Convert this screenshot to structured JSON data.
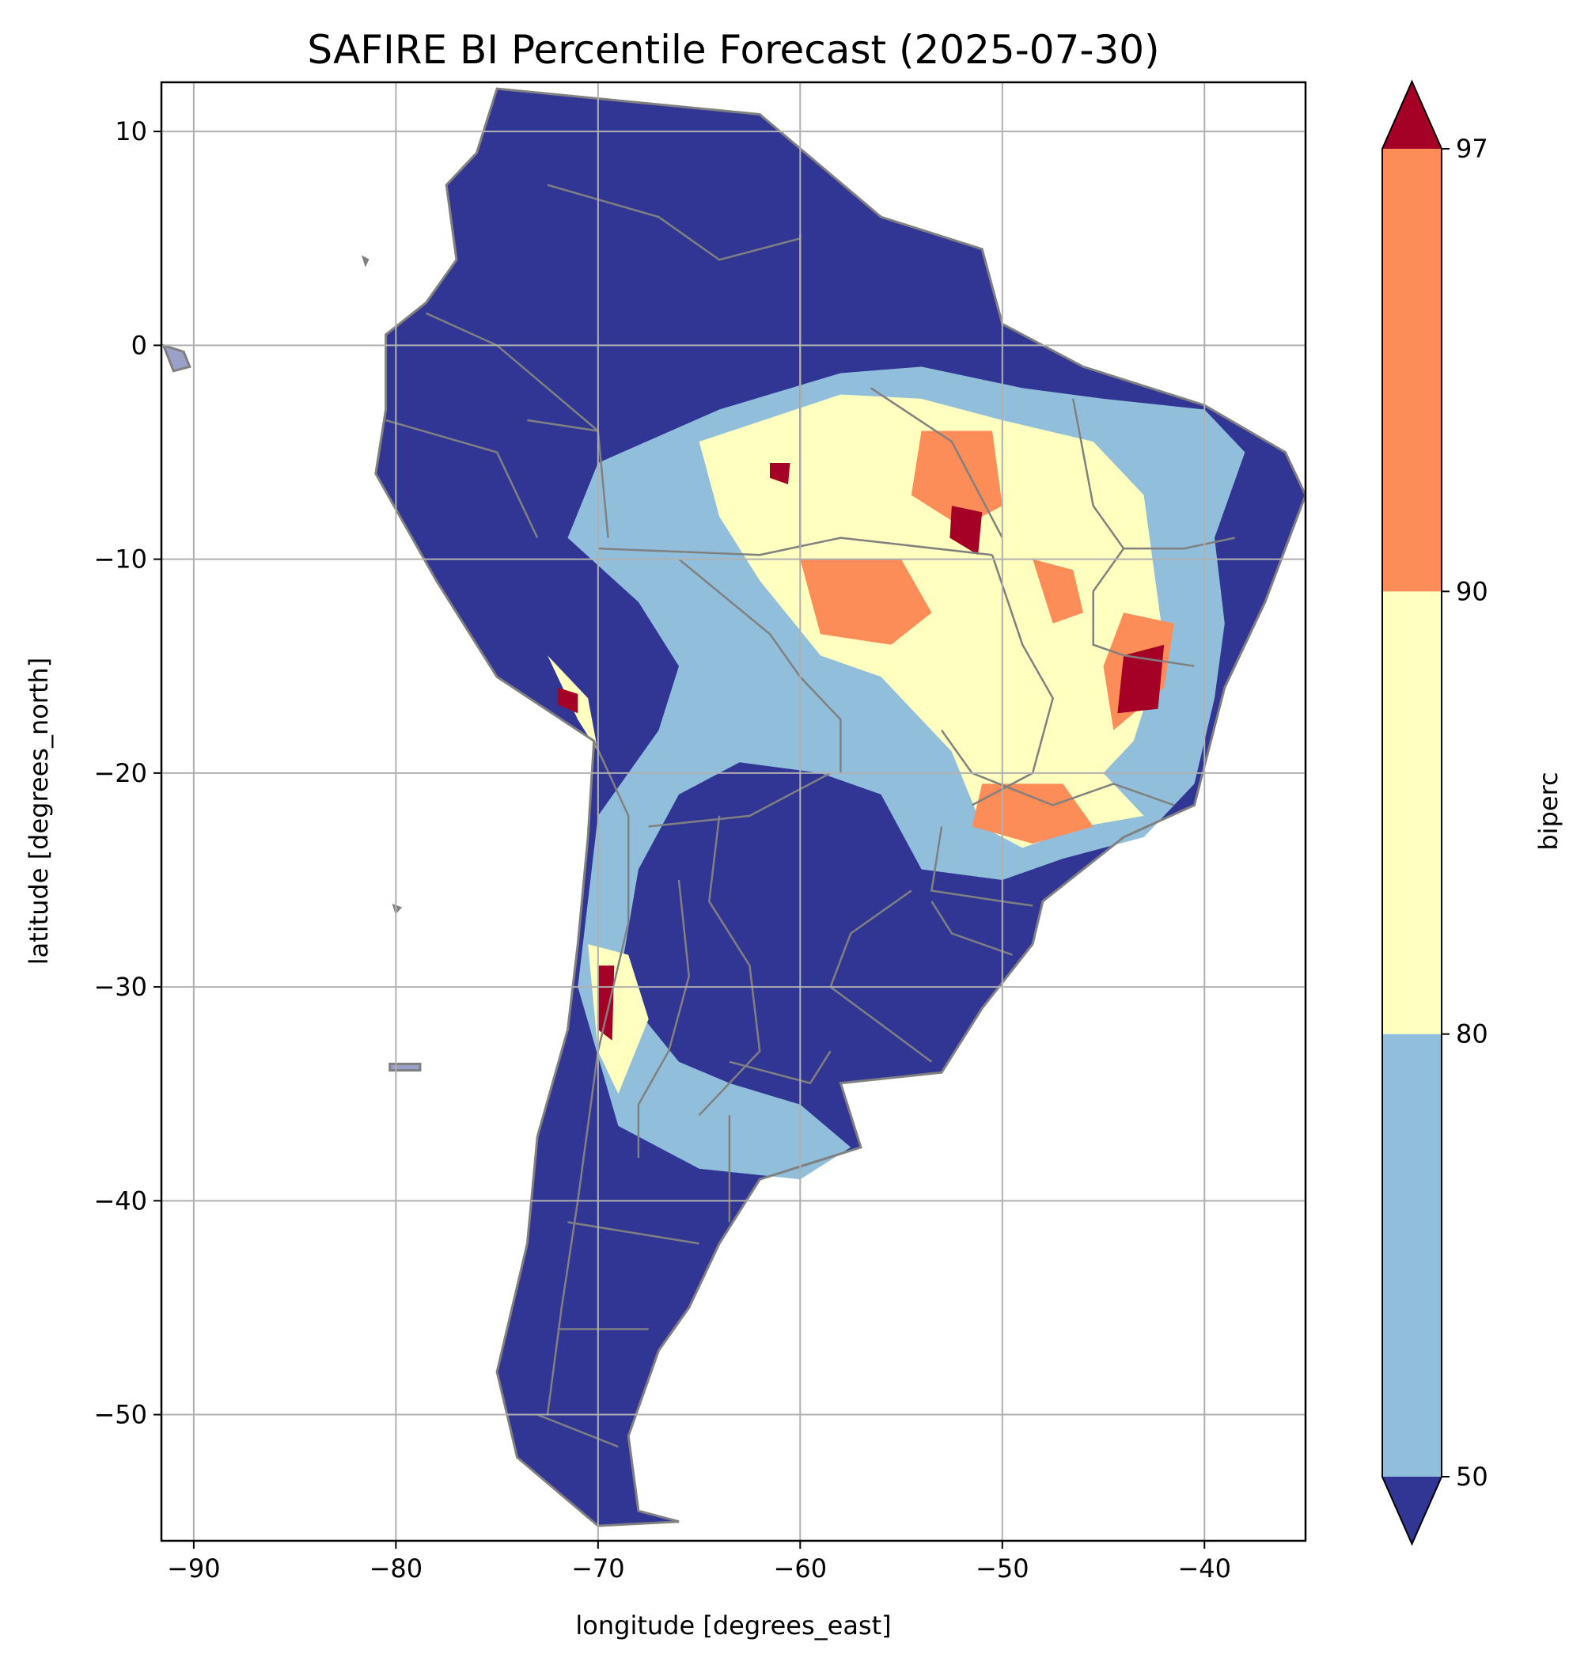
{
  "chart_data": {
    "type": "heatmap",
    "title": "SAFIRE BI Percentile Forecast (2025-07-30)",
    "xlabel": "longitude [degrees_east]",
    "ylabel": "latitude [degrees_north]",
    "xlim": [
      -91.6,
      -35.0
    ],
    "ylim": [
      -55.9,
      12.3
    ],
    "xticks": [
      {
        "value": -90,
        "label": "−90"
      },
      {
        "value": -80,
        "label": "−80"
      },
      {
        "value": -70,
        "label": "−70"
      },
      {
        "value": -60,
        "label": "−60"
      },
      {
        "value": -50,
        "label": "−50"
      },
      {
        "value": -40,
        "label": "−40"
      }
    ],
    "yticks": [
      {
        "value": 10,
        "label": "10"
      },
      {
        "value": 0,
        "label": "0"
      },
      {
        "value": -10,
        "label": "−10"
      },
      {
        "value": -20,
        "label": "−20"
      },
      {
        "value": -30,
        "label": "−30"
      },
      {
        "value": -40,
        "label": "−40"
      },
      {
        "value": -50,
        "label": "−50"
      }
    ],
    "grid": true,
    "colorbar": {
      "label": "biperc",
      "ticks": [
        {
          "value": 50,
          "label": "50"
        },
        {
          "value": 80,
          "label": "80"
        },
        {
          "value": 90,
          "label": "90"
        },
        {
          "value": 97,
          "label": "97"
        }
      ],
      "extend": "both",
      "bins": [
        {
          "range": "<50",
          "color": "#313695"
        },
        {
          "range": "50-80",
          "color": "#91bfdb"
        },
        {
          "range": "80-90",
          "color": "#ffffbf"
        },
        {
          "range": "90-97",
          "color": "#fc8d59"
        },
        {
          "range": ">97",
          "color": "#a50026"
        }
      ]
    },
    "border_color": "#808080",
    "regions": [
      {
        "class": "<50",
        "polygon": [
          [
            -75.0,
            12.0
          ],
          [
            -62.0,
            10.8
          ],
          [
            -56.0,
            6.0
          ],
          [
            -51.0,
            4.5
          ],
          [
            -50.0,
            1.0
          ],
          [
            -46.0,
            -1.0
          ],
          [
            -40.0,
            -2.8
          ],
          [
            -36.0,
            -5.0
          ],
          [
            -35.0,
            -7.0
          ],
          [
            -37.0,
            -12.0
          ],
          [
            -39.0,
            -16.0
          ],
          [
            -40.5,
            -21.5
          ],
          [
            -44.0,
            -23.0
          ],
          [
            -48.0,
            -26.0
          ],
          [
            -48.5,
            -28.0
          ],
          [
            -51.0,
            -31.0
          ],
          [
            -53.0,
            -34.0
          ],
          [
            -58.0,
            -34.5
          ],
          [
            -57.0,
            -37.5
          ],
          [
            -62.0,
            -39.0
          ],
          [
            -64.0,
            -42.0
          ],
          [
            -65.5,
            -45.0
          ],
          [
            -67.0,
            -47.0
          ],
          [
            -68.5,
            -51.0
          ],
          [
            -68.0,
            -54.5
          ],
          [
            -66.0,
            -55.0
          ],
          [
            -70.0,
            -55.2
          ],
          [
            -74.0,
            -52.0
          ],
          [
            -75.0,
            -48.0
          ],
          [
            -73.5,
            -42.0
          ],
          [
            -73.0,
            -37.0
          ],
          [
            -71.5,
            -32.0
          ],
          [
            -71.0,
            -28.0
          ],
          [
            -70.5,
            -23.0
          ],
          [
            -70.2,
            -18.5
          ],
          [
            -75.0,
            -15.5
          ],
          [
            -78.0,
            -11.0
          ],
          [
            -81.0,
            -6.0
          ],
          [
            -80.5,
            -3.0
          ],
          [
            -80.5,
            0.5
          ],
          [
            -78.5,
            2.0
          ],
          [
            -77.0,
            4.0
          ],
          [
            -77.5,
            7.5
          ],
          [
            -76.0,
            9.0
          ],
          [
            -75.0,
            12.0
          ]
        ]
      },
      {
        "class": "50-80",
        "polygon": [
          [
            -71.5,
            -9.0
          ],
          [
            -70.0,
            -5.5
          ],
          [
            -64.0,
            -3.0
          ],
          [
            -58.0,
            -1.3
          ],
          [
            -54.0,
            -1.0
          ],
          [
            -49.0,
            -2.0
          ],
          [
            -45.0,
            -2.5
          ],
          [
            -40.0,
            -3.0
          ],
          [
            -38.0,
            -5.0
          ],
          [
            -39.5,
            -9.0
          ],
          [
            -39.0,
            -13.0
          ],
          [
            -39.5,
            -16.5
          ],
          [
            -40.5,
            -20.5
          ],
          [
            -43.0,
            -23.0
          ],
          [
            -47.0,
            -24.0
          ],
          [
            -50.0,
            -25.0
          ],
          [
            -54.0,
            -24.5
          ],
          [
            -56.0,
            -21.0
          ],
          [
            -59.0,
            -20.0
          ],
          [
            -63.0,
            -19.5
          ],
          [
            -66.0,
            -21.0
          ],
          [
            -68.0,
            -24.5
          ],
          [
            -69.0,
            -30.0
          ],
          [
            -66.0,
            -33.5
          ],
          [
            -63.5,
            -34.5
          ],
          [
            -60.0,
            -35.5
          ],
          [
            -57.5,
            -37.5
          ],
          [
            -60.0,
            -39.0
          ],
          [
            -65.0,
            -38.5
          ],
          [
            -69.0,
            -36.5
          ],
          [
            -71.0,
            -30.0
          ],
          [
            -70.0,
            -22.0
          ],
          [
            -67.0,
            -18.0
          ],
          [
            -66.0,
            -15.0
          ],
          [
            -68.0,
            -12.0
          ],
          [
            -71.5,
            -9.0
          ]
        ]
      },
      {
        "class": "80-90",
        "polygon": [
          [
            -65.0,
            -4.5
          ],
          [
            -58.0,
            -2.3
          ],
          [
            -54.0,
            -2.5
          ],
          [
            -50.0,
            -3.5
          ],
          [
            -45.5,
            -4.5
          ],
          [
            -43.0,
            -7.0
          ],
          [
            -42.5,
            -10.5
          ],
          [
            -42.0,
            -14.0
          ],
          [
            -43.5,
            -18.5
          ],
          [
            -45.0,
            -20.0
          ],
          [
            -43.0,
            -22.0
          ],
          [
            -46.0,
            -22.5
          ],
          [
            -49.0,
            -23.5
          ],
          [
            -51.0,
            -22.5
          ],
          [
            -52.5,
            -19.0
          ],
          [
            -56.0,
            -15.5
          ],
          [
            -59.0,
            -14.5
          ],
          [
            -62.0,
            -11.0
          ],
          [
            -64.0,
            -8.0
          ],
          [
            -65.0,
            -4.5
          ]
        ]
      },
      {
        "class": "80-90",
        "polygon": [
          [
            -72.5,
            -14.5
          ],
          [
            -70.5,
            -16.5
          ],
          [
            -70.0,
            -19.0
          ],
          [
            -71.0,
            -17.5
          ],
          [
            -72.5,
            -14.5
          ]
        ]
      },
      {
        "class": "80-90",
        "polygon": [
          [
            -70.5,
            -28.0
          ],
          [
            -68.5,
            -28.5
          ],
          [
            -67.5,
            -31.5
          ],
          [
            -69.0,
            -35.0
          ],
          [
            -70.0,
            -33.0
          ],
          [
            -70.5,
            -28.0
          ]
        ]
      },
      {
        "class": "90-97",
        "polygon": [
          [
            -54.0,
            -4.0
          ],
          [
            -50.5,
            -4.0
          ],
          [
            -50.0,
            -7.5
          ],
          [
            -52.0,
            -8.5
          ],
          [
            -54.5,
            -7.0
          ],
          [
            -54.0,
            -4.0
          ]
        ]
      },
      {
        "class": "90-97",
        "polygon": [
          [
            -60.0,
            -10.0
          ],
          [
            -55.0,
            -10.0
          ],
          [
            -53.5,
            -12.5
          ],
          [
            -55.5,
            -14.0
          ],
          [
            -59.0,
            -13.5
          ],
          [
            -60.0,
            -10.0
          ]
        ]
      },
      {
        "class": "90-97",
        "polygon": [
          [
            -48.5,
            -10.0
          ],
          [
            -46.5,
            -10.5
          ],
          [
            -46.0,
            -12.5
          ],
          [
            -47.5,
            -13.0
          ],
          [
            -48.5,
            -10.0
          ]
        ]
      },
      {
        "class": "90-97",
        "polygon": [
          [
            -44.0,
            -12.5
          ],
          [
            -41.5,
            -13.0
          ],
          [
            -42.0,
            -16.0
          ],
          [
            -44.5,
            -18.0
          ],
          [
            -45.0,
            -15.0
          ],
          [
            -44.0,
            -12.5
          ]
        ]
      },
      {
        "class": "90-97",
        "polygon": [
          [
            -51.0,
            -20.5
          ],
          [
            -47.0,
            -20.5
          ],
          [
            -45.5,
            -22.5
          ],
          [
            -48.5,
            -23.3
          ],
          [
            -51.5,
            -22.5
          ],
          [
            -51.0,
            -20.5
          ]
        ]
      },
      {
        "class": ">97",
        "polygon": [
          [
            -44.0,
            -14.5
          ],
          [
            -42.0,
            -14.0
          ],
          [
            -42.3,
            -17.0
          ],
          [
            -44.3,
            -17.2
          ],
          [
            -44.0,
            -14.5
          ]
        ]
      },
      {
        "class": ">97",
        "polygon": [
          [
            -52.5,
            -7.5
          ],
          [
            -51.0,
            -7.8
          ],
          [
            -51.2,
            -9.8
          ],
          [
            -52.6,
            -9.0
          ],
          [
            -52.5,
            -7.5
          ]
        ]
      },
      {
        "class": ">97",
        "polygon": [
          [
            -72.0,
            -16.0
          ],
          [
            -71.0,
            -16.3
          ],
          [
            -71.0,
            -17.2
          ],
          [
            -72.0,
            -16.8
          ],
          [
            -72.0,
            -16.0
          ]
        ]
      },
      {
        "class": ">97",
        "polygon": [
          [
            -70.0,
            -29.0
          ],
          [
            -69.2,
            -29.0
          ],
          [
            -69.3,
            -32.5
          ],
          [
            -70.0,
            -32.0
          ],
          [
            -70.0,
            -29.0
          ]
        ]
      },
      {
        "class": ">97",
        "polygon": [
          [
            -61.5,
            -5.5
          ],
          [
            -60.5,
            -5.5
          ],
          [
            -60.6,
            -6.5
          ],
          [
            -61.5,
            -6.2
          ],
          [
            -61.5,
            -5.5
          ]
        ]
      }
    ],
    "borders": [
      [
        [
          -60.0,
          5.2
        ],
        [
          -60.0,
          -9.5
        ]
      ],
      [
        [
          -70.0,
          -9.5
        ],
        [
          -62.0,
          -9.8
        ],
        [
          -58.0,
          -9.0
        ],
        [
          -50.5,
          -9.8
        ]
      ],
      [
        [
          -66.0,
          -10.0
        ],
        [
          -61.5,
          -13.5
        ],
        [
          -60.0,
          -15.5
        ],
        [
          -58.0,
          -17.5
        ],
        [
          -58.0,
          -20.0
        ]
      ],
      [
        [
          -73.5,
          -3.5
        ],
        [
          -70.0,
          -4.0
        ],
        [
          -69.5,
          -9.0
        ]
      ],
      [
        [
          -67.5,
          -22.5
        ],
        [
          -62.5,
          -22.0
        ],
        [
          -58.5,
          -20.0
        ]
      ],
      [
        [
          -54.5,
          -25.5
        ],
        [
          -57.5,
          -27.5
        ],
        [
          -58.5,
          -30.0
        ],
        [
          -53.5,
          -33.5
        ]
      ],
      [
        [
          -70.2,
          -18.5
        ],
        [
          -68.5,
          -22.0
        ],
        [
          -68.5,
          -27.0
        ],
        [
          -70.0,
          -33.0
        ],
        [
          -71.0,
          -40.0
        ],
        [
          -71.8,
          -45.0
        ],
        [
          -72.5,
          -50.0
        ]
      ],
      [
        [
          -78.5,
          1.5
        ],
        [
          -75.0,
          0.0
        ],
        [
          -70.0,
          -4.0
        ]
      ],
      [
        [
          -80.5,
          -3.5
        ],
        [
          -75.0,
          -5.0
        ],
        [
          -73.0,
          -9.0
        ]
      ],
      [
        [
          -72.5,
          7.5
        ],
        [
          -67.0,
          6.0
        ],
        [
          -64.0,
          4.0
        ],
        [
          -60.0,
          5.0
        ]
      ],
      [
        [
          -56.5,
          -2.0
        ],
        [
          -52.5,
          -4.5
        ],
        [
          -50.0,
          -9.0
        ]
      ],
      [
        [
          -50.5,
          -9.8
        ],
        [
          -49.0,
          -14.0
        ],
        [
          -47.5,
          -16.5
        ],
        [
          -48.5,
          -20.0
        ],
        [
          -51.5,
          -21.5
        ]
      ],
      [
        [
          -46.5,
          -2.5
        ],
        [
          -45.5,
          -7.5
        ],
        [
          -44.0,
          -9.5
        ],
        [
          -41.0,
          -9.5
        ],
        [
          -38.5,
          -9.0
        ]
      ],
      [
        [
          -44.0,
          -9.5
        ],
        [
          -45.5,
          -11.5
        ],
        [
          -45.5,
          -14.0
        ],
        [
          -44.0,
          -14.5
        ],
        [
          -40.5,
          -15.0
        ]
      ],
      [
        [
          -53.0,
          -18.0
        ],
        [
          -51.5,
          -20.0
        ],
        [
          -47.5,
          -21.5
        ],
        [
          -44.5,
          -20.5
        ],
        [
          -41.5,
          -21.5
        ]
      ],
      [
        [
          -53.0,
          -22.5
        ],
        [
          -53.5,
          -25.5
        ],
        [
          -50.0,
          -26.0
        ],
        [
          -48.5,
          -26.2
        ]
      ],
      [
        [
          -53.5,
          -26.0
        ],
        [
          -52.5,
          -27.5
        ],
        [
          -49.5,
          -28.5
        ]
      ],
      [
        [
          -64.0,
          -22.0
        ],
        [
          -64.5,
          -26.0
        ],
        [
          -62.5,
          -29.0
        ],
        [
          -62.0,
          -33.0
        ],
        [
          -65.0,
          -36.0
        ]
      ],
      [
        [
          -66.0,
          -25.0
        ],
        [
          -65.5,
          -29.5
        ],
        [
          -66.5,
          -33.0
        ],
        [
          -68.0,
          -35.5
        ],
        [
          -68.0,
          -38.0
        ]
      ],
      [
        [
          -63.5,
          -33.5
        ],
        [
          -59.5,
          -34.5
        ],
        [
          -58.5,
          -33.0
        ]
      ],
      [
        [
          -63.5,
          -36.0
        ],
        [
          -63.5,
          -41.0
        ]
      ],
      [
        [
          -71.5,
          -41.0
        ],
        [
          -65.0,
          -42.0
        ]
      ],
      [
        [
          -72.0,
          -46.0
        ],
        [
          -67.5,
          -46.0
        ]
      ],
      [
        [
          -73.0,
          -50.0
        ],
        [
          -69.0,
          -51.5
        ]
      ]
    ],
    "islands": [
      [
        [
          -91.5,
          0.0
        ],
        [
          -90.5,
          -0.3
        ],
        [
          -90.2,
          -1.0
        ],
        [
          -91.0,
          -1.2
        ],
        [
          -91.5,
          0.0
        ]
      ],
      [
        [
          -80.3,
          -33.6
        ],
        [
          -78.8,
          -33.6
        ],
        [
          -78.8,
          -33.9
        ],
        [
          -80.3,
          -33.9
        ],
        [
          -80.3,
          -33.6
        ]
      ],
      [
        [
          -81.6,
          4.1
        ],
        [
          -81.4,
          4.0
        ],
        [
          -81.5,
          3.8
        ],
        [
          -81.6,
          4.1
        ]
      ],
      [
        [
          -80.1,
          -26.2
        ],
        [
          -79.8,
          -26.3
        ],
        [
          -80.0,
          -26.5
        ],
        [
          -80.1,
          -26.2
        ]
      ]
    ]
  }
}
